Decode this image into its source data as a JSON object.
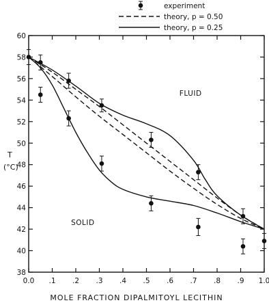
{
  "chart_data": {
    "type": "line",
    "xlabel": "MOLE FRACTION DIPALMITOYL LECITHIN",
    "ylabel_line1": "T",
    "ylabel_line2": "(°C)",
    "xlim": [
      0.0,
      1.0
    ],
    "ylim": [
      38,
      60
    ],
    "x_ticks": [
      0.0,
      0.1,
      0.2,
      0.3,
      0.4,
      0.5,
      0.6,
      0.7,
      0.8,
      0.9,
      1.0
    ],
    "x_tick_labels": [
      "0.0",
      ".1",
      ".2",
      ".3",
      ".4",
      ".5",
      ".6",
      ".7",
      ".8",
      ".9",
      "1.0"
    ],
    "y_ticks": [
      38,
      40,
      42,
      44,
      46,
      48,
      50,
      52,
      54,
      56,
      58,
      60
    ],
    "y_tick_labels": [
      "38",
      "40",
      "42",
      "44",
      "46",
      "48",
      "50",
      "52",
      "54",
      "56",
      "58",
      "60"
    ],
    "grid": false,
    "legend_position": "top-right",
    "legend": [
      {
        "key": "experiment",
        "label": "experiment",
        "style": "point-errorbar"
      },
      {
        "key": "theory_050",
        "label": "theory, p = 0.50",
        "style": "dashed"
      },
      {
        "key": "theory_025",
        "label": "theory, p = 0.25",
        "style": "solid"
      }
    ],
    "annotations": [
      {
        "label": "FLUID",
        "x": 0.64,
        "y": 54.4
      },
      {
        "label": "SOLID",
        "x": 0.18,
        "y": 42.4
      }
    ],
    "series": [
      {
        "key": "experiment",
        "name": "experiment",
        "type": "scatter",
        "points": [
          {
            "x": 0.0,
            "y": 58.0,
            "err": 0.7
          },
          {
            "x": 0.05,
            "y": 57.5,
            "err": 0.7
          },
          {
            "x": 0.05,
            "y": 54.5,
            "err": 0.7
          },
          {
            "x": 0.17,
            "y": 55.8,
            "err": 0.7
          },
          {
            "x": 0.17,
            "y": 52.3,
            "err": 0.7
          },
          {
            "x": 0.31,
            "y": 53.5,
            "err": 0.6
          },
          {
            "x": 0.31,
            "y": 48.1,
            "err": 0.7
          },
          {
            "x": 0.52,
            "y": 50.3,
            "err": 0.7
          },
          {
            "x": 0.52,
            "y": 44.4,
            "err": 0.7
          },
          {
            "x": 0.72,
            "y": 47.3,
            "err": 0.7
          },
          {
            "x": 0.72,
            "y": 42.2,
            "err": 0.8
          },
          {
            "x": 0.91,
            "y": 43.2,
            "err": 0.7
          },
          {
            "x": 0.91,
            "y": 40.4,
            "err": 0.7
          },
          {
            "x": 1.0,
            "y": 40.9,
            "err": 0.7
          }
        ]
      },
      {
        "key": "theory_050_upper",
        "name": "theory, p = 0.50",
        "type": "line",
        "dash": true,
        "x": [
          0.0,
          0.1,
          0.2,
          0.3,
          0.4,
          0.5,
          0.6,
          0.7,
          0.8,
          0.9,
          1.0
        ],
        "y": [
          58.0,
          56.6,
          55.0,
          53.4,
          51.7,
          50.0,
          48.3,
          46.6,
          44.9,
          43.3,
          42.0
        ]
      },
      {
        "key": "theory_050_lower",
        "name": "theory, p = 0.50",
        "type": "line",
        "dash": true,
        "x": [
          0.0,
          0.1,
          0.2,
          0.3,
          0.4,
          0.5,
          0.6,
          0.7,
          0.8,
          0.9,
          1.0
        ],
        "y": [
          58.0,
          56.2,
          54.3,
          52.5,
          50.8,
          49.1,
          47.4,
          45.8,
          44.3,
          43.0,
          42.0
        ]
      },
      {
        "key": "theory_025_upper",
        "name": "theory, p = 0.25",
        "type": "line",
        "dash": false,
        "x": [
          0.0,
          0.1,
          0.2,
          0.3,
          0.4,
          0.5,
          0.6,
          0.7,
          0.75,
          0.8,
          0.9,
          1.0
        ],
        "y": [
          58.0,
          56.8,
          55.3,
          53.7,
          52.6,
          51.8,
          50.7,
          48.4,
          46.6,
          45.1,
          43.3,
          42.0
        ]
      },
      {
        "key": "theory_025_lower",
        "name": "theory, p = 0.25",
        "type": "line",
        "dash": false,
        "x": [
          0.0,
          0.05,
          0.1,
          0.15,
          0.2,
          0.25,
          0.3,
          0.35,
          0.4,
          0.5,
          0.6,
          0.7,
          0.8,
          0.9,
          1.0
        ],
        "y": [
          58.0,
          57.0,
          55.4,
          53.2,
          51.0,
          49.1,
          47.5,
          46.4,
          45.7,
          45.0,
          44.6,
          44.2,
          43.5,
          42.7,
          42.0
        ]
      }
    ]
  }
}
